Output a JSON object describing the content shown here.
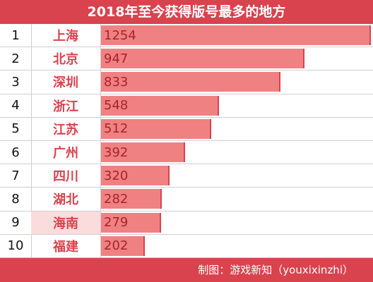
{
  "colors": {
    "accent": "#d8434e",
    "bar": "#ef8183",
    "highlight": "#fbdcdc"
  },
  "chart_data": {
    "type": "bar",
    "title": "2018年至今获得版号最多的地方",
    "ranks": [
      "1",
      "2",
      "3",
      "4",
      "5",
      "6",
      "7",
      "8",
      "9",
      "10"
    ],
    "categories": [
      "上海",
      "北京",
      "深圳",
      "浙江",
      "江苏",
      "广州",
      "四川",
      "湖北",
      "海南",
      "福建"
    ],
    "values": [
      1254,
      947,
      833,
      548,
      512,
      392,
      320,
      282,
      279,
      202
    ],
    "highlighted_category": "海南",
    "xlim": [
      0,
      1254
    ],
    "source": "制图：游戏新知（youxixinzhi）"
  }
}
